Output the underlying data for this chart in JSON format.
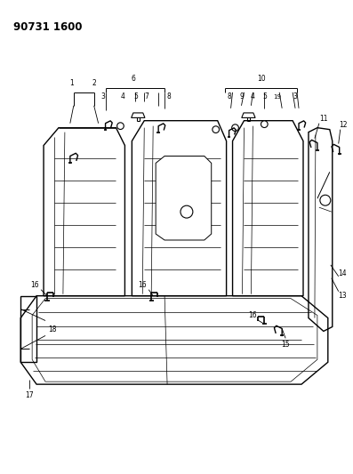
{
  "title": "90731 1600",
  "bg_color": "#ffffff",
  "line_color": "#000000",
  "fig_width": 3.97,
  "fig_height": 5.33,
  "dpi": 100,
  "lw_main": 1.0,
  "lw_thin": 0.5,
  "lw_med": 0.7
}
